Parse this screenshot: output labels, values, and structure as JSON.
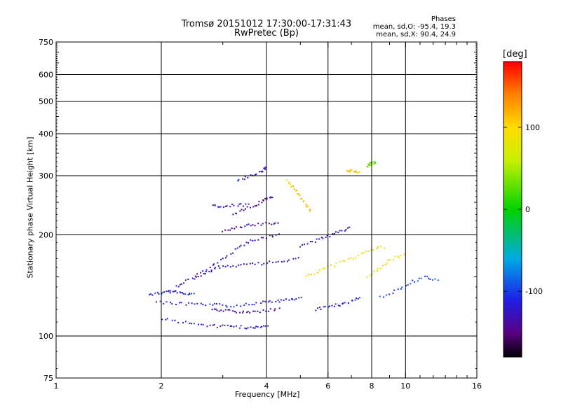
{
  "chart_data": {
    "type": "scatter",
    "title": "Tromsø 20151012 17:30:00-17:31:43",
    "subtitle": "RwPretec (Bp)",
    "stats": {
      "heading": "Phases",
      "line1": "mean, sd,O: -95.4, 19.3",
      "line2": "mean, sd,X:  90.4, 24.9"
    },
    "xlabel": "Frequency [MHz]",
    "ylabel": "Stationary phase Virtual Height [km]",
    "x_scale": "log",
    "y_scale": "log",
    "xlim": [
      1,
      16
    ],
    "ylim": [
      75,
      750
    ],
    "x_ticks": [
      1,
      2,
      4,
      6,
      8,
      10,
      16
    ],
    "y_ticks": [
      75,
      100,
      200,
      300,
      400,
      500,
      600,
      750
    ],
    "x_gridlines": [
      2,
      4,
      6,
      8,
      10
    ],
    "y_gridlines": [
      100,
      200,
      300,
      400,
      500,
      600
    ],
    "colorbar": {
      "label": "[deg]",
      "range": [
        -180,
        180
      ],
      "ticks": [
        100,
        0,
        -100
      ]
    },
    "traces": [
      {
        "name": "",
        "phase": -110,
        "points": [
          [
            1.85,
            133
          ],
          [
            2.0,
            134
          ],
          [
            2.1,
            136
          ],
          [
            2.2,
            135
          ],
          [
            2.35,
            134
          ],
          [
            2.5,
            133
          ]
        ]
      },
      {
        "name": "",
        "phase": -110,
        "points": [
          [
            1.95,
            126
          ],
          [
            2.2,
            125
          ],
          [
            2.5,
            124
          ],
          [
            2.8,
            124
          ],
          [
            3.1,
            123
          ],
          [
            3.5,
            124
          ],
          [
            3.9,
            126
          ],
          [
            4.3,
            127
          ],
          [
            4.7,
            128
          ],
          [
            5.1,
            130
          ]
        ]
      },
      {
        "name": "",
        "phase": -115,
        "points": [
          [
            2.0,
            113
          ],
          [
            2.3,
            110
          ],
          [
            2.6,
            108
          ],
          [
            2.9,
            107
          ],
          [
            3.2,
            107
          ],
          [
            3.5,
            106
          ],
          [
            3.8,
            106
          ],
          [
            4.1,
            107
          ]
        ]
      },
      {
        "name": "",
        "phase": -130,
        "points": [
          [
            2.8,
            120
          ],
          [
            3.0,
            119
          ],
          [
            3.3,
            118
          ],
          [
            3.6,
            118
          ],
          [
            4.0,
            119
          ],
          [
            4.4,
            120
          ]
        ]
      },
      {
        "name": "",
        "phase": -125,
        "points": [
          [
            2.5,
            148
          ],
          [
            2.7,
            155
          ],
          [
            2.9,
            160
          ],
          [
            3.2,
            162
          ],
          [
            3.6,
            163
          ],
          [
            4.0,
            165
          ],
          [
            4.5,
            168
          ],
          [
            5.0,
            170
          ]
        ]
      },
      {
        "name": "",
        "phase": -130,
        "points": [
          [
            2.2,
            140
          ],
          [
            2.4,
            147
          ],
          [
            2.7,
            157
          ],
          [
            3.0,
            170
          ],
          [
            3.3,
            182
          ],
          [
            3.6,
            192
          ],
          [
            4.0,
            197
          ],
          [
            4.4,
            200
          ]
        ]
      },
      {
        "name": "",
        "phase": -130,
        "points": [
          [
            3.0,
            205
          ],
          [
            3.3,
            210
          ],
          [
            3.6,
            214
          ],
          [
            4.0,
            216
          ],
          [
            4.4,
            218
          ]
        ]
      },
      {
        "name": "",
        "phase": -140,
        "points": [
          [
            3.2,
            230
          ],
          [
            3.5,
            240
          ],
          [
            3.8,
            248
          ],
          [
            4.0,
            255
          ],
          [
            4.2,
            262
          ]
        ]
      },
      {
        "name": "",
        "phase": -120,
        "points": [
          [
            2.8,
            243
          ],
          [
            3.0,
            244
          ],
          [
            3.3,
            245
          ],
          [
            3.6,
            246
          ]
        ]
      },
      {
        "name": "",
        "phase": -120,
        "points": [
          [
            3.3,
            290
          ],
          [
            3.6,
            300
          ],
          [
            3.9,
            310
          ],
          [
            4.0,
            318
          ]
        ]
      },
      {
        "name": "",
        "phase": 110,
        "points": [
          [
            4.6,
            290
          ],
          [
            4.8,
            275
          ],
          [
            5.0,
            260
          ],
          [
            5.2,
            245
          ],
          [
            5.4,
            235
          ]
        ]
      },
      {
        "name": "",
        "phase": 110,
        "points": [
          [
            6.8,
            310
          ],
          [
            7.0,
            310
          ],
          [
            7.2,
            309
          ],
          [
            7.4,
            308
          ]
        ]
      },
      {
        "name": "",
        "phase": 30,
        "points": [
          [
            7.8,
            320
          ],
          [
            7.9,
            323
          ],
          [
            8.0,
            326
          ],
          [
            8.2,
            328
          ]
        ]
      },
      {
        "name": "",
        "phase": -110,
        "points": [
          [
            5.5,
            120
          ],
          [
            6.0,
            122
          ],
          [
            6.5,
            124
          ],
          [
            7.0,
            127
          ],
          [
            7.5,
            130
          ]
        ]
      },
      {
        "name": "",
        "phase": -120,
        "points": [
          [
            5.0,
            185
          ],
          [
            5.5,
            192
          ],
          [
            6.0,
            198
          ],
          [
            6.5,
            205
          ],
          [
            7.0,
            212
          ]
        ]
      },
      {
        "name": "",
        "phase": 100,
        "points": [
          [
            5.2,
            150
          ],
          [
            5.8,
            158
          ],
          [
            6.5,
            165
          ],
          [
            7.2,
            172
          ],
          [
            8.0,
            180
          ],
          [
            8.8,
            185
          ]
        ]
      },
      {
        "name": "",
        "phase": -100,
        "points": [
          [
            8.5,
            130
          ],
          [
            9.5,
            138
          ],
          [
            10.5,
            145
          ],
          [
            11.5,
            150
          ],
          [
            12.5,
            145
          ]
        ]
      },
      {
        "name": "",
        "phase": 95,
        "points": [
          [
            7.8,
            150
          ],
          [
            8.5,
            160
          ],
          [
            9.2,
            170
          ],
          [
            10.0,
            175
          ]
        ]
      }
    ]
  }
}
